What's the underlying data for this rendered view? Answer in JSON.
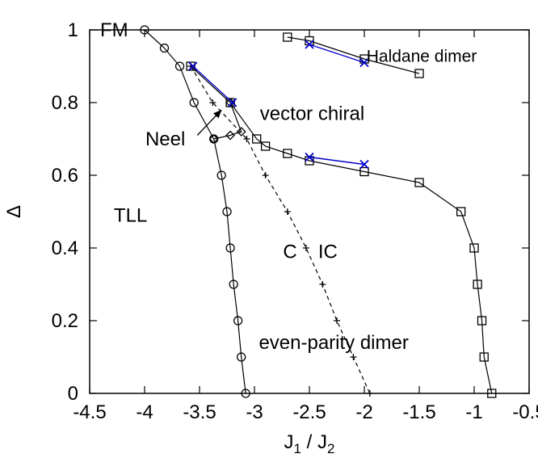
{
  "chart_data": {
    "type": "line",
    "title": "",
    "xlabel": "J",
    "xlabel_sub_1": "1",
    "xlabel_sep": " / J",
    "xlabel_sub_2": "2",
    "ylabel": "Δ",
    "xlim": [
      -4.5,
      -0.5
    ],
    "ylim": [
      0,
      1
    ],
    "xticks": [
      -4.5,
      -4,
      -3.5,
      -3,
      -2.5,
      -2,
      -1.5,
      -1,
      -0.5
    ],
    "yticks": [
      0,
      0.2,
      0.4,
      0.6,
      0.8,
      1
    ],
    "xtick_labels": [
      "-4.5",
      "-4",
      "-3.5",
      "-3",
      "-2.5",
      "-2",
      "-1.5",
      "-1",
      "-0.5"
    ],
    "ytick_labels": [
      "0",
      "0.2",
      "0.4",
      "0.6",
      "0.8",
      "1"
    ],
    "grid": false,
    "series": [
      {
        "marker": "circle",
        "color": "#000000",
        "dash": "solid",
        "points": [
          [
            -4.0,
            1.0
          ],
          [
            -3.82,
            0.95
          ],
          [
            -3.68,
            0.9
          ],
          [
            -3.55,
            0.8
          ],
          [
            -3.37,
            0.7
          ],
          [
            -3.3,
            0.6
          ],
          [
            -3.25,
            0.5
          ],
          [
            -3.22,
            0.4
          ],
          [
            -3.19,
            0.3
          ],
          [
            -3.15,
            0.2
          ],
          [
            -3.12,
            0.1
          ],
          [
            -3.08,
            0.0
          ]
        ]
      },
      {
        "marker": "square",
        "color": "#000000",
        "dash": "solid",
        "points": [
          [
            -3.58,
            0.9
          ],
          [
            -3.22,
            0.8
          ],
          [
            -2.98,
            0.7
          ],
          [
            -2.9,
            0.68
          ],
          [
            -2.7,
            0.66
          ],
          [
            -2.5,
            0.64
          ],
          [
            -2.0,
            0.61
          ],
          [
            -1.5,
            0.58
          ],
          [
            -1.12,
            0.5
          ],
          [
            -1.0,
            0.4
          ],
          [
            -0.97,
            0.3
          ],
          [
            -0.93,
            0.2
          ],
          [
            -0.91,
            0.1
          ],
          [
            -0.84,
            0.0
          ]
        ]
      },
      {
        "marker": "square",
        "color": "#000000",
        "dash": "solid",
        "points": [
          [
            -2.7,
            0.98
          ],
          [
            -2.5,
            0.97
          ],
          [
            -2.0,
            0.92
          ],
          [
            -1.5,
            0.88
          ]
        ]
      },
      {
        "marker": "plus",
        "color": "#000000",
        "dash": "dashed",
        "points": [
          [
            -3.58,
            0.9
          ],
          [
            -3.38,
            0.8
          ],
          [
            -3.07,
            0.7
          ],
          [
            -2.9,
            0.6
          ],
          [
            -2.7,
            0.5
          ],
          [
            -2.53,
            0.4
          ],
          [
            -2.38,
            0.3
          ],
          [
            -2.25,
            0.2
          ],
          [
            -2.1,
            0.1
          ],
          [
            -1.95,
            0.0
          ]
        ]
      },
      {
        "marker": "diamond",
        "color": "#000000",
        "dash": "solid",
        "points": [
          [
            -3.22,
            0.8
          ],
          [
            -3.12,
            0.72
          ],
          [
            -3.22,
            0.71
          ],
          [
            -3.37,
            0.7
          ]
        ]
      },
      {
        "marker": "cross",
        "color": "#0000cc",
        "dash": "solid",
        "points": [
          [
            -3.56,
            0.9
          ],
          [
            -3.2,
            0.8
          ]
        ]
      },
      {
        "marker": "cross",
        "color": "#0000cc",
        "dash": "solid",
        "points": [
          [
            -2.5,
            0.65
          ],
          [
            -2.0,
            0.63
          ]
        ]
      },
      {
        "marker": "cross",
        "color": "#0000cc",
        "dash": "solid",
        "points": [
          [
            -2.5,
            0.96
          ],
          [
            -2.0,
            0.91
          ]
        ]
      }
    ],
    "annotations": [
      {
        "text": "FM",
        "x": -4.15,
        "y": 1.0,
        "anchor": "end"
      },
      {
        "text": "Haldane dimer",
        "x": -1.98,
        "y": 0.93,
        "anchor": "start",
        "small": true
      },
      {
        "text": "vector chiral",
        "x": -2.95,
        "y": 0.77,
        "anchor": "start"
      },
      {
        "text": "Neel",
        "x": -3.63,
        "y": 0.7,
        "anchor": "end"
      },
      {
        "text": "TLL",
        "x": -4.28,
        "y": 0.49,
        "anchor": "start"
      },
      {
        "text": "C",
        "x": -2.74,
        "y": 0.39,
        "anchor": "start"
      },
      {
        "text": "IC",
        "x": -2.42,
        "y": 0.39,
        "anchor": "start"
      },
      {
        "text": "even-parity dimer",
        "x": -2.96,
        "y": 0.14,
        "anchor": "start"
      }
    ],
    "arrow": {
      "from": [
        -3.52,
        0.71
      ],
      "to": [
        -3.3,
        0.78
      ]
    }
  }
}
